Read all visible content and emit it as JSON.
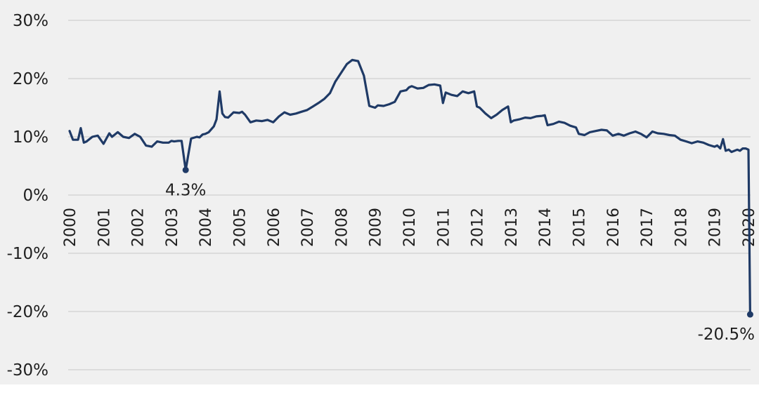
{
  "chart_data": {
    "type": "line",
    "title": "",
    "xlabel": "",
    "ylabel": "",
    "ylim": [
      -30,
      30
    ],
    "xlim": [
      2000,
      2020
    ],
    "grid": true,
    "legend": "none",
    "y_ticks": [
      "30%",
      "20%",
      "10%",
      "0%",
      "-10%",
      "-20%",
      "-30%"
    ],
    "y_tick_values": [
      30,
      20,
      10,
      0,
      -10,
      -20,
      -30
    ],
    "x_ticks": [
      "2000",
      "2001",
      "2002",
      "2003",
      "2004",
      "2005",
      "2006",
      "2007",
      "2008",
      "2009",
      "2010",
      "2011",
      "2012",
      "2013",
      "2014",
      "2015",
      "2016",
      "2017",
      "2018",
      "2019",
      "2020"
    ],
    "x_tick_values": [
      2000,
      2001,
      2002,
      2003,
      2004,
      2005,
      2006,
      2007,
      2008,
      2009,
      2010,
      2011,
      2012,
      2013,
      2014,
      2015,
      2016,
      2017,
      2018,
      2019,
      2020
    ],
    "colors": {
      "line": "#1f3a66",
      "plot_bg": "#f0f0f0",
      "grid": "#c9c9c9"
    },
    "series": [
      {
        "x": [
          2000.0,
          2000.1,
          2000.25,
          2000.33,
          2000.42,
          2000.5,
          2000.67,
          2000.83,
          2001.0,
          2001.17,
          2001.25,
          2001.42,
          2001.58,
          2001.75,
          2001.92,
          2002.08,
          2002.25,
          2002.42,
          2002.58,
          2002.75,
          2002.92,
          2003.0,
          2003.08,
          2003.2,
          2003.3,
          2003.42,
          2003.58,
          2003.75,
          2003.83,
          2003.92,
          2004.0,
          2004.1,
          2004.25,
          2004.33,
          2004.42,
          2004.5,
          2004.58,
          2004.67,
          2004.83,
          2005.0,
          2005.08,
          2005.17,
          2005.33,
          2005.5,
          2005.67,
          2005.83,
          2006.0,
          2006.17,
          2006.33,
          2006.5,
          2006.67,
          2006.83,
          2007.0,
          2007.17,
          2007.33,
          2007.5,
          2007.67,
          2007.83,
          2008.0,
          2008.17,
          2008.33,
          2008.5,
          2008.67,
          2008.83,
          2009.0,
          2009.08,
          2009.25,
          2009.42,
          2009.58,
          2009.75,
          2009.92,
          2010.0,
          2010.08,
          2010.25,
          2010.42,
          2010.58,
          2010.75,
          2010.92,
          2011.0,
          2011.08,
          2011.25,
          2011.42,
          2011.58,
          2011.75,
          2011.92,
          2012.0,
          2012.08,
          2012.25,
          2012.42,
          2012.58,
          2012.75,
          2012.92,
          2013.0,
          2013.08,
          2013.25,
          2013.42,
          2013.58,
          2013.75,
          2013.92,
          2014.0,
          2014.08,
          2014.25,
          2014.42,
          2014.58,
          2014.75,
          2014.92,
          2015.0,
          2015.17,
          2015.33,
          2015.5,
          2015.67,
          2015.83,
          2016.0,
          2016.17,
          2016.33,
          2016.5,
          2016.67,
          2016.83,
          2017.0,
          2017.17,
          2017.33,
          2017.5,
          2017.67,
          2017.83,
          2018.0,
          2018.17,
          2018.33,
          2018.5,
          2018.67,
          2018.83,
          2019.0,
          2019.08,
          2019.17,
          2019.25,
          2019.33,
          2019.42,
          2019.5,
          2019.67,
          2019.75,
          2019.83,
          2019.92,
          2020.0,
          2020.05,
          2020.1
        ],
        "y": [
          11.0,
          9.5,
          9.5,
          11.5,
          9.0,
          9.2,
          10.0,
          10.2,
          8.8,
          10.6,
          10.0,
          10.8,
          10.0,
          9.8,
          10.5,
          10.0,
          8.5,
          8.3,
          9.2,
          9.0,
          9.0,
          9.3,
          9.2,
          9.3,
          9.3,
          4.3,
          9.7,
          10.0,
          9.9,
          10.4,
          10.5,
          10.8,
          11.8,
          13.0,
          17.8,
          14.0,
          13.4,
          13.3,
          14.2,
          14.1,
          14.3,
          13.8,
          12.5,
          12.8,
          12.7,
          12.9,
          12.5,
          13.5,
          14.2,
          13.8,
          14.0,
          14.3,
          14.6,
          15.2,
          15.8,
          16.5,
          17.5,
          19.5,
          21.0,
          22.5,
          23.2,
          23.0,
          20.5,
          15.3,
          15.0,
          15.4,
          15.3,
          15.6,
          16.0,
          17.8,
          18.0,
          18.5,
          18.7,
          18.3,
          18.4,
          18.9,
          19.0,
          18.8,
          15.8,
          17.6,
          17.2,
          17.0,
          17.8,
          17.5,
          17.8,
          15.2,
          15.0,
          14.0,
          13.2,
          13.8,
          14.6,
          15.2,
          12.5,
          12.8,
          13.0,
          13.3,
          13.2,
          13.5,
          13.6,
          13.7,
          12.0,
          12.2,
          12.6,
          12.4,
          11.9,
          11.6,
          10.5,
          10.3,
          10.8,
          11.0,
          11.2,
          11.1,
          10.2,
          10.5,
          10.2,
          10.6,
          10.9,
          10.5,
          9.9,
          10.9,
          10.6,
          10.5,
          10.3,
          10.2,
          9.5,
          9.2,
          8.9,
          9.2,
          9.0,
          8.6,
          8.3,
          8.5,
          8.0,
          9.6,
          7.6,
          7.8,
          7.4,
          7.8,
          7.6,
          8.0,
          8.0,
          7.8,
          -20.5,
          -20.5
        ]
      }
    ],
    "annotations": [
      {
        "text": "4.3%",
        "x": 2003.42,
        "y": 4.3
      },
      {
        "text": "-20.5%",
        "x": 2020.05,
        "y": -20.5
      }
    ]
  }
}
